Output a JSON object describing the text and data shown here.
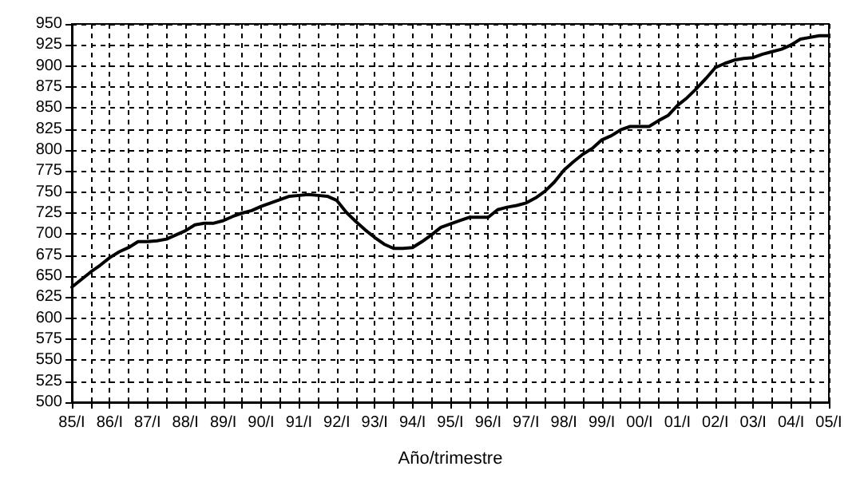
{
  "chart_data": {
    "type": "line",
    "xlabel": "Año/trimestre",
    "categories": [
      "85/I",
      null,
      null,
      null,
      "86/I",
      null,
      null,
      null,
      "87/I",
      null,
      null,
      null,
      "88/I",
      null,
      null,
      null,
      "89/I",
      null,
      null,
      null,
      "90/I",
      null,
      null,
      null,
      "91/I",
      null,
      null,
      null,
      "92/I",
      null,
      null,
      null,
      "93/I",
      null,
      null,
      null,
      "94/I",
      null,
      null,
      null,
      "95/I",
      null,
      null,
      null,
      "96/I",
      null,
      null,
      null,
      "97/I",
      null,
      null,
      null,
      "98/I",
      null,
      null,
      null,
      "99/I",
      null,
      null,
      null,
      "00/I",
      null,
      null,
      null,
      "01/I",
      null,
      null,
      null,
      "02/I",
      null,
      null,
      null,
      "03/I",
      null,
      null,
      null,
      "04/I",
      null,
      null,
      null,
      "05/I"
    ],
    "series": [
      {
        "color": "#000000",
        "values": [
          637,
          646,
          655,
          663,
          672,
          679,
          684,
          691,
          691,
          692,
          694,
          699,
          704,
          711,
          713,
          713,
          716,
          721,
          725,
          728,
          733,
          737,
          741,
          745,
          746,
          747,
          746,
          745,
          740,
          726,
          715,
          705,
          696,
          688,
          683,
          683,
          684,
          691,
          699,
          708,
          712,
          716,
          720,
          720,
          720,
          729,
          732,
          734,
          737,
          743,
          751,
          762,
          776,
          786,
          795,
          802,
          812,
          817,
          824,
          828,
          828,
          828,
          835,
          841,
          853,
          862,
          873,
          885,
          898,
          903,
          907,
          909,
          910,
          914,
          917,
          920,
          925,
          932,
          934,
          936,
          936
        ]
      }
    ],
    "ylim": [
      500,
      950
    ],
    "yticks": [
      500,
      525,
      550,
      575,
      600,
      625,
      650,
      675,
      700,
      725,
      750,
      775,
      800,
      825,
      850,
      875,
      900,
      925,
      950
    ],
    "grid": true,
    "marker": "none",
    "line_style": "solid"
  }
}
